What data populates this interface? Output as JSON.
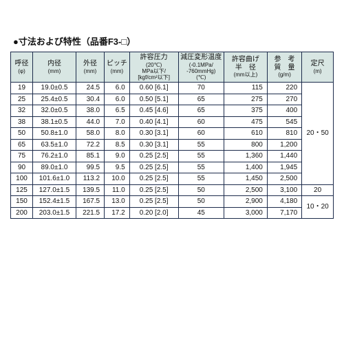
{
  "title": "●寸法および特性（品番F3-□）",
  "headers": {
    "c0": "呼径",
    "c0s": "(φ)",
    "c1": "内径",
    "c1s": "(mm)",
    "c2": "外径",
    "c2s": "(mm)",
    "c3": "ピッチ",
    "c3s": "(mm)",
    "c4": "許容圧力",
    "c4s": "(20℃)\nMPa以下/\n[kgf/cm²以下]",
    "c5": "減圧変形温度",
    "c5s": "(-0.1MPa/\n-760mmHg)\n(℃)",
    "c6": "許容曲げ\n半　径",
    "c6s": "(mm以上)",
    "c7": "参　考\n質　量",
    "c7s": "(g/m)",
    "c8": "定尺",
    "c8s": "(m)"
  },
  "rows": [
    {
      "d": "19",
      "id": "19.0±0.5",
      "od": "24.5",
      "p": "6.0",
      "pr": "0.60 [6.1]",
      "t": "70",
      "r": "115",
      "w": "220"
    },
    {
      "d": "25",
      "id": "25.4±0.5",
      "od": "30.4",
      "p": "6.0",
      "pr": "0.50 [5.1]",
      "t": "65",
      "r": "275",
      "w": "270"
    },
    {
      "d": "32",
      "id": "32.0±0.5",
      "od": "38.0",
      "p": "6.5",
      "pr": "0.45 [4.6]",
      "t": "65",
      "r": "375",
      "w": "400"
    },
    {
      "d": "38",
      "id": "38.1±0.5",
      "od": "44.0",
      "p": "7.0",
      "pr": "0.40 [4.1]",
      "t": "60",
      "r": "475",
      "w": "545"
    },
    {
      "d": "50",
      "id": "50.8±1.0",
      "od": "58.0",
      "p": "8.0",
      "pr": "0.30 [3.1]",
      "t": "60",
      "r": "610",
      "w": "810"
    },
    {
      "d": "65",
      "id": "63.5±1.0",
      "od": "72.2",
      "p": "8.5",
      "pr": "0.30 [3.1]",
      "t": "55",
      "r": "800",
      "w": "1,200"
    },
    {
      "d": "75",
      "id": "76.2±1.0",
      "od": "85.1",
      "p": "9.0",
      "pr": "0.25 [2.5]",
      "t": "55",
      "r": "1,360",
      "w": "1,440"
    },
    {
      "d": "90",
      "id": "89.0±1.0",
      "od": "99.5",
      "p": "9.5",
      "pr": "0.25 [2.5]",
      "t": "55",
      "r": "1,400",
      "w": "1,945"
    },
    {
      "d": "100",
      "id": "101.6±1.0",
      "od": "113.2",
      "p": "10.0",
      "pr": "0.25 [2.5]",
      "t": "55",
      "r": "1,450",
      "w": "2,500"
    },
    {
      "d": "125",
      "id": "127.0±1.5",
      "od": "139.5",
      "p": "11.0",
      "pr": "0.25 [2.5]",
      "t": "50",
      "r": "2,500",
      "w": "3,100"
    },
    {
      "d": "150",
      "id": "152.4±1.5",
      "od": "167.5",
      "p": "13.0",
      "pr": "0.25 [2.5]",
      "t": "50",
      "r": "2,900",
      "w": "4,180"
    },
    {
      "d": "200",
      "id": "203.0±1.5",
      "od": "221.5",
      "p": "17.2",
      "pr": "0.20 [2.0]",
      "t": "45",
      "r": "3,000",
      "w": "7,170"
    }
  ],
  "fixedLen": {
    "g1": "20・50",
    "g2": "20",
    "g3": "10・20"
  }
}
